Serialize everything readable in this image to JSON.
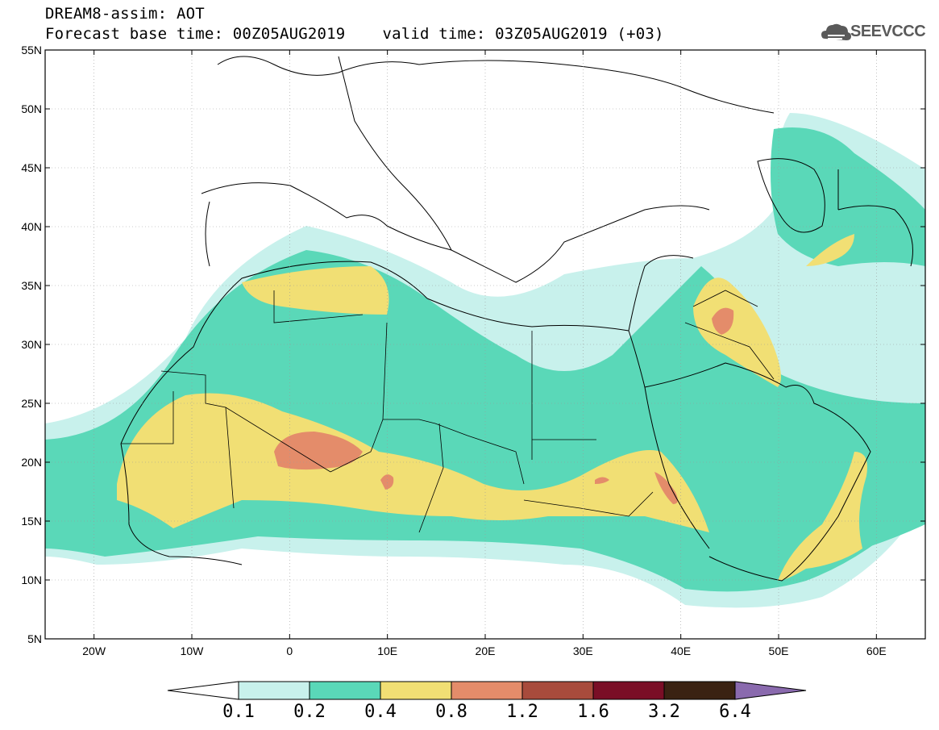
{
  "header": {
    "line1": "DREAM8-assim: AOT",
    "base_time": "Forecast base time: 00Z05AUG2019",
    "valid_time": "valid time: 03Z05AUG2019 (+03)"
  },
  "logo": {
    "text": "SEEVCCC",
    "icon": "cloud-icon"
  },
  "map": {
    "lat_range": [
      "5N",
      "55N"
    ],
    "lon_range": [
      "25W",
      "65E"
    ],
    "lat_labels": [
      "55N",
      "50N",
      "45N",
      "40N",
      "35N",
      "30N",
      "25N",
      "20N",
      "15N",
      "10N",
      "5N"
    ],
    "lon_labels": [
      "20W",
      "10W",
      "0",
      "10E",
      "20E",
      "30E",
      "40E",
      "50E",
      "60E"
    ],
    "grid": true,
    "grid_style": "dotted"
  },
  "colorbar": {
    "labels": [
      "0.1",
      "0.2",
      "0.4",
      "0.8",
      "1.2",
      "1.6",
      "3.2",
      "6.4"
    ],
    "colors": [
      "#c8f1ec",
      "#5ad8b8",
      "#f1df74",
      "#e48c6a",
      "#a84b3c",
      "#7a0e26",
      "#3a2212",
      "#8a6aae"
    ],
    "extend_low_color": "#ffffff"
  }
}
